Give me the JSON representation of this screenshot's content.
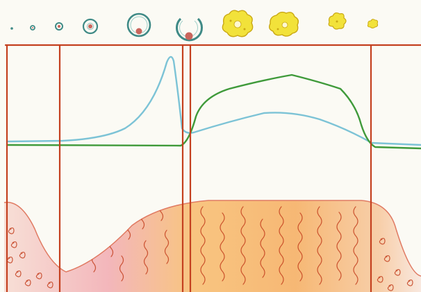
{
  "colors": {
    "paper": "#fbfaf4",
    "dividers": "#c4401f",
    "blue_curve": "#7cc3d6",
    "green_curve": "#3f9a3a",
    "follicle_ring": "#3f8a86",
    "egg": "#c9655c",
    "corpus_luteum": "#f2e23a",
    "corpus_luteum_outline": "#c9a814",
    "tissue_fill_light": "#f3c2b6",
    "tissue_fill_warm": "#f5a24a",
    "tissue_fill_pink": "#f0a0a8",
    "tissue_outline": "#e07a62",
    "gland_squiggle": "#c4401f"
  },
  "follicle_stages": [
    {
      "name": "follicle-stage-1-icon"
    },
    {
      "name": "follicle-stage-2-icon"
    },
    {
      "name": "follicle-stage-3-icon"
    },
    {
      "name": "follicle-stage-4-icon"
    },
    {
      "name": "follicle-stage-5-icon"
    },
    {
      "name": "ovulating-follicle-icon"
    },
    {
      "name": "corpus-luteum-1-icon"
    },
    {
      "name": "corpus-luteum-2-icon"
    },
    {
      "name": "corpus-luteum-3-icon"
    },
    {
      "name": "corpus-albicans-icon"
    }
  ],
  "phases": [
    "menstrual",
    "follicular",
    "ovulation",
    "luteal",
    "menstrual-next"
  ]
}
